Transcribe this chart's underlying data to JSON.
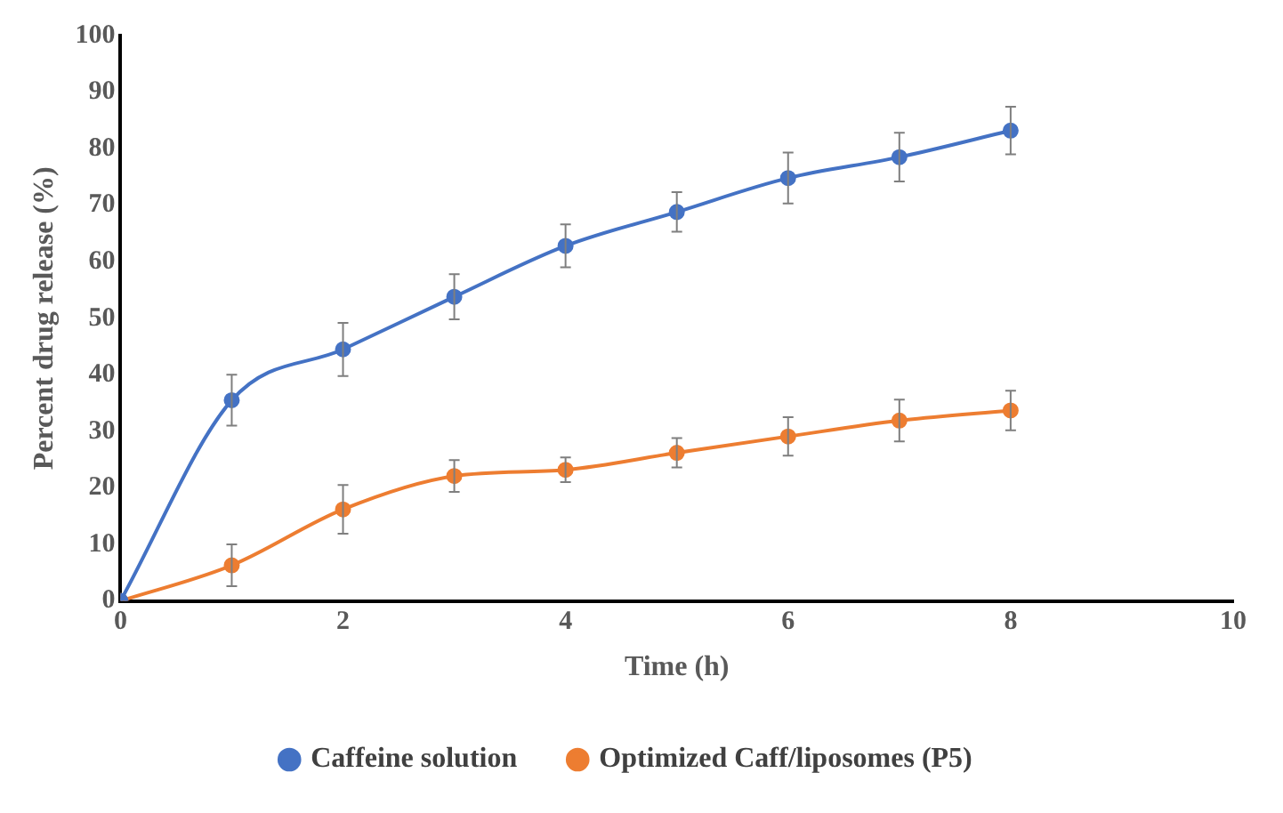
{
  "chart_data": {
    "type": "line",
    "xlabel": "Time (h)",
    "ylabel": "Percent drug release (%)",
    "x": [
      0,
      1,
      2,
      3,
      4,
      5,
      6,
      7,
      8
    ],
    "series": [
      {
        "name": "Caffeine solution",
        "color": "#4472c4",
        "values": [
          0,
          35.5,
          44.5,
          53.8,
          62.8,
          68.8,
          74.8,
          78.5,
          83.2
        ],
        "errors": [
          null,
          4.5,
          4.7,
          4,
          3.8,
          3.5,
          4.5,
          4.3,
          4.2
        ]
      },
      {
        "name": "Optimized Caff/liposomes (P5)",
        "color": "#ed7d31",
        "values": [
          0,
          6.3,
          16.2,
          22.1,
          23.2,
          26.2,
          29.1,
          31.9,
          33.7
        ],
        "errors": [
          null,
          3.7,
          4.3,
          2.8,
          2.2,
          2.6,
          3.4,
          3.7,
          3.5
        ]
      }
    ],
    "xlim": [
      0,
      10
    ],
    "xticks": [
      0,
      2,
      4,
      6,
      8,
      10
    ],
    "ylim": [
      0,
      100
    ],
    "yticks": [
      0,
      10,
      20,
      30,
      40,
      50,
      60,
      70,
      80,
      90,
      100
    ],
    "grid": false,
    "legend": "bottom",
    "marker": "circle",
    "line_style": "solid"
  }
}
